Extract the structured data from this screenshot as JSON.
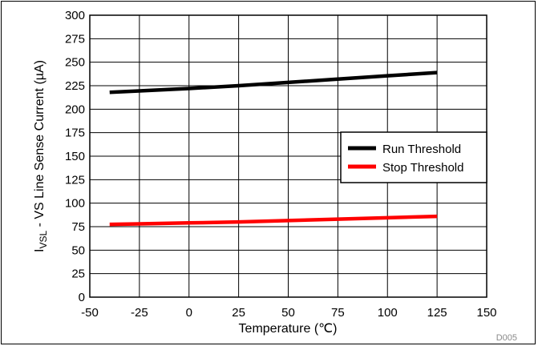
{
  "chart_data": {
    "type": "line",
    "xlabel": "Temperature (℃)",
    "ylabel_main": "I",
    "ylabel_sub": "VSL",
    "ylabel_rest": " - VS Line Sense Current  (µA)",
    "xlim": [
      -50,
      150
    ],
    "ylim": [
      0,
      300
    ],
    "x_ticks": [
      -50,
      -25,
      0,
      25,
      50,
      75,
      100,
      125,
      150
    ],
    "y_ticks": [
      0,
      25,
      50,
      75,
      100,
      125,
      150,
      175,
      200,
      225,
      250,
      275,
      300
    ],
    "grid": true,
    "legend_position": "right",
    "series": [
      {
        "name": "Run Threshold",
        "color": "#000000",
        "x": [
          -40,
          -25,
          0,
          25,
          50,
          75,
          100,
          125
        ],
        "y": [
          218,
          219.5,
          222,
          225,
          228.5,
          232,
          235.5,
          239
        ]
      },
      {
        "name": "Stop Threshold",
        "color": "#ff0000",
        "x": [
          -40,
          -25,
          0,
          25,
          50,
          75,
          100,
          125
        ],
        "y": [
          77.5,
          78,
          79,
          80,
          81.5,
          83,
          84.5,
          86
        ]
      }
    ],
    "figure_id": "D005"
  }
}
